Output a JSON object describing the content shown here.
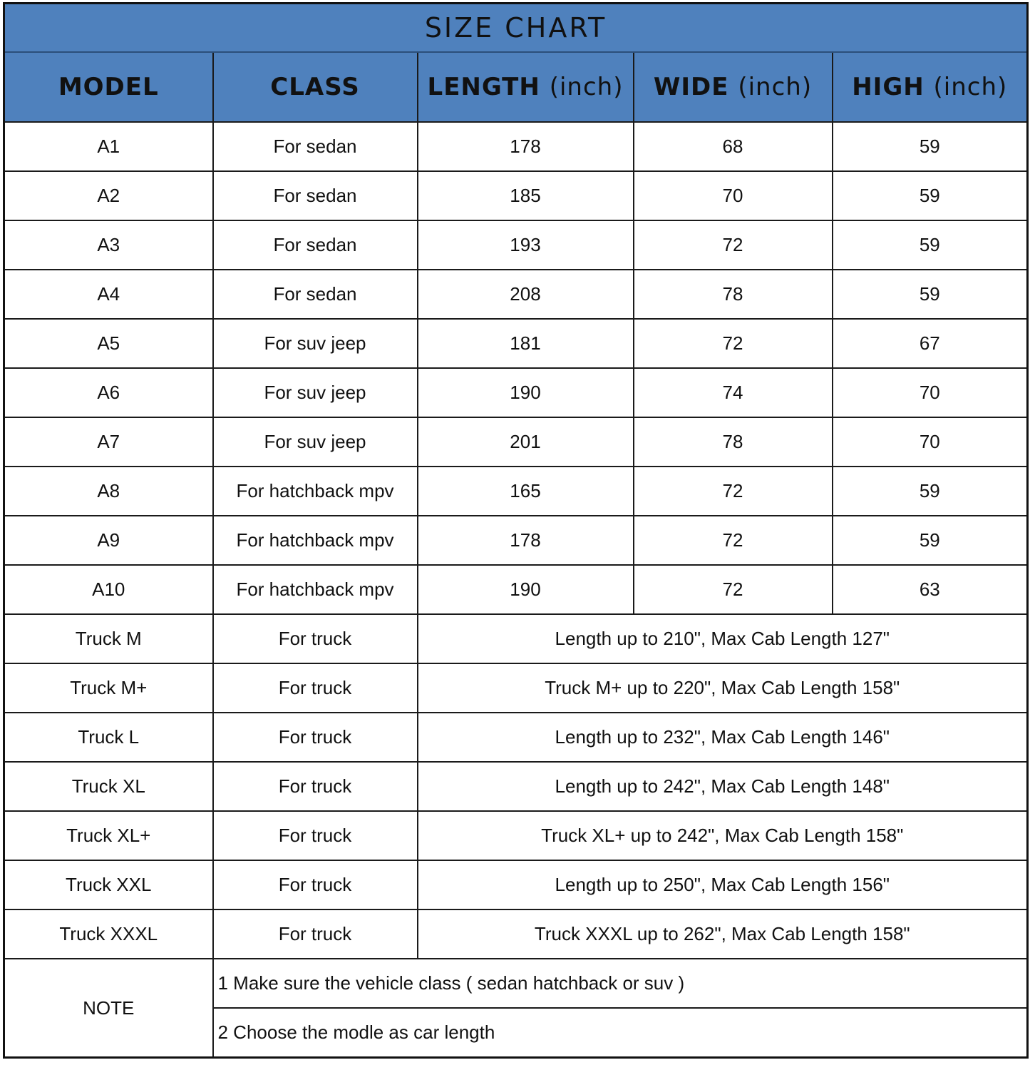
{
  "title": "SIZE CHART",
  "header_color": "#4f81bd",
  "columns": [
    {
      "label": "MODEL",
      "unit": ""
    },
    {
      "label": "CLASS",
      "unit": ""
    },
    {
      "label": "LENGTH",
      "unit": "(inch)"
    },
    {
      "label": "WIDE",
      "unit": "(inch)"
    },
    {
      "label": "HIGH",
      "unit": "(inch)"
    }
  ],
  "rows": [
    {
      "model": "A1",
      "class": "For sedan",
      "length": "178",
      "wide": "68",
      "high": "59"
    },
    {
      "model": "A2",
      "class": "For sedan",
      "length": "185",
      "wide": "70",
      "high": "59"
    },
    {
      "model": "A3",
      "class": "For sedan",
      "length": "193",
      "wide": "72",
      "high": "59"
    },
    {
      "model": "A4",
      "class": "For sedan",
      "length": "208",
      "wide": "78",
      "high": "59"
    },
    {
      "model": "A5",
      "class": "For suv jeep",
      "length": "181",
      "wide": "72",
      "high": "67"
    },
    {
      "model": "A6",
      "class": "For suv jeep",
      "length": "190",
      "wide": "74",
      "high": "70"
    },
    {
      "model": "A7",
      "class": "For suv jeep",
      "length": "201",
      "wide": "78",
      "high": "70"
    },
    {
      "model": "A8",
      "class": "For hatchback mpv",
      "length": "165",
      "wide": "72",
      "high": "59"
    },
    {
      "model": "A9",
      "class": "For hatchback mpv",
      "length": "178",
      "wide": "72",
      "high": "59"
    },
    {
      "model": "A10",
      "class": "For hatchback mpv",
      "length": "190",
      "wide": "72",
      "high": "63"
    }
  ],
  "truck_rows": [
    {
      "model": "Truck M",
      "class": "For truck",
      "spec": "Length up to 210\", Max Cab Length 127\""
    },
    {
      "model": "Truck M+",
      "class": "For truck",
      "spec": "Truck M+ up to 220\", Max Cab Length 158\""
    },
    {
      "model": "Truck L",
      "class": "For truck",
      "spec": "Length up to 232\", Max Cab Length 146\""
    },
    {
      "model": "Truck XL",
      "class": "For truck",
      "spec": "Length up to 242\", Max Cab Length 148\""
    },
    {
      "model": "Truck XL+",
      "class": "For truck",
      "spec": "Truck XL+ up to 242\", Max Cab Length 158\""
    },
    {
      "model": "Truck XXL",
      "class": "For truck",
      "spec": "Length up to 250\", Max Cab Length 156\""
    },
    {
      "model": "Truck XXXL",
      "class": "For truck",
      "spec": "Truck XXXL up to 262\", Max Cab Length 158\""
    }
  ],
  "note": {
    "label": "NOTE",
    "items": [
      "1 Make sure the vehicle class ( sedan hatchback or suv )",
      "2 Choose the modle as car length"
    ]
  }
}
